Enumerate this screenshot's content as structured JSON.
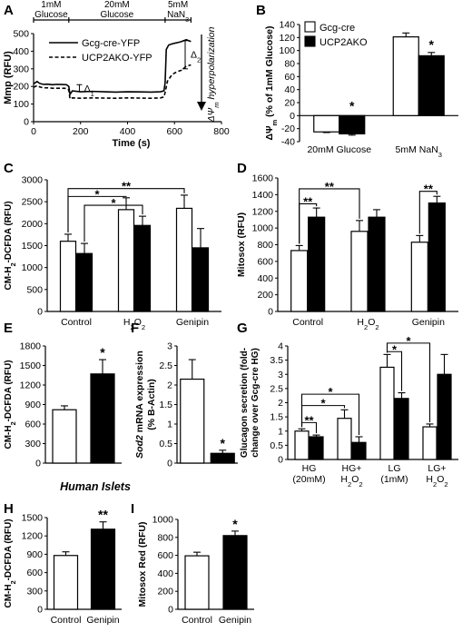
{
  "figure": {
    "section_heading": "Human Islets"
  },
  "chart_data": [
    {
      "panel": "A",
      "type": "line",
      "xlabel": "Time (s)",
      "ylabel": "Mmp (RFU)",
      "xlim": [
        0,
        800
      ],
      "ylim": [
        0,
        500
      ],
      "xticks": [
        "0",
        "200",
        "400",
        "600",
        "800"
      ],
      "yticks": [
        "0",
        "100",
        "200",
        "300",
        "400",
        "500"
      ],
      "conditions": [
        {
          "label": "1mM\nGlucose",
          "x0": 0,
          "x1": 150
        },
        {
          "label": "20mM\nGlucose",
          "x0": 150,
          "x1": 560
        },
        {
          "label": "5mM\nNaN3",
          "x0": 560,
          "x1": 670
        }
      ],
      "annotations": {
        "delta1": "Δ1",
        "delta2": "Δ2",
        "hyper": "ΔΨm hyperpolarization"
      },
      "series": [
        {
          "name": "Gcg-cre-YFP",
          "style": "solid",
          "x": [
            0,
            15,
            25,
            40,
            60,
            80,
            100,
            120,
            140,
            150,
            155,
            165,
            200,
            250,
            300,
            350,
            400,
            450,
            500,
            540,
            555,
            560,
            565,
            575,
            590,
            610,
            630,
            650,
            670
          ],
          "y": [
            215,
            228,
            218,
            212,
            213,
            210,
            212,
            211,
            210,
            200,
            155,
            175,
            170,
            172,
            170,
            168,
            170,
            169,
            168,
            170,
            175,
            220,
            410,
            435,
            442,
            448,
            455,
            465,
            455
          ]
        },
        {
          "name": "UCP2AKO-YFP",
          "style": "dashed",
          "x": [
            0,
            15,
            25,
            40,
            60,
            80,
            100,
            120,
            140,
            150,
            155,
            165,
            200,
            250,
            300,
            350,
            400,
            450,
            500,
            540,
            555,
            560,
            570,
            590,
            610,
            630,
            650,
            670
          ],
          "y": [
            195,
            205,
            198,
            192,
            192,
            190,
            190,
            190,
            189,
            180,
            130,
            135,
            133,
            135,
            134,
            133,
            135,
            134,
            133,
            135,
            140,
            165,
            230,
            268,
            283,
            292,
            315,
            322
          ]
        }
      ]
    },
    {
      "panel": "B",
      "type": "bar",
      "ylabel": "ΔΨm (% of 1mM Glucose)",
      "ylim": [
        -40,
        140
      ],
      "yticks": [
        "-40",
        "-20",
        "0",
        "20",
        "40",
        "60",
        "80",
        "100",
        "120",
        "140"
      ],
      "categories": [
        "20mM Glucose",
        "5mM NaN3"
      ],
      "series": [
        {
          "name": "Gcg-cre",
          "fill": "#ffffff",
          "values": [
            -25,
            121
          ],
          "errors": [
            1,
            6
          ]
        },
        {
          "name": "UCP2AKO",
          "fill": "#000000",
          "values": [
            -28,
            92
          ],
          "errors": [
            2,
            5
          ]
        }
      ],
      "stars": [
        "*",
        "*"
      ]
    },
    {
      "panel": "C",
      "type": "bar",
      "ylabel": "CM-H2-DCFDA (RFU)",
      "ylim": [
        0,
        3000
      ],
      "yticks": [
        "0",
        "500",
        "1000",
        "1500",
        "2000",
        "2500",
        "3000"
      ],
      "categories": [
        "Control",
        "H2O2",
        "Genipin"
      ],
      "series": [
        {
          "name": "Gcg-cre",
          "fill": "#ffffff",
          "values": [
            1600,
            2320,
            2350
          ],
          "errors": [
            160,
            270,
            300
          ]
        },
        {
          "name": "UCP2AKO",
          "fill": "#000000",
          "values": [
            1320,
            1960,
            1450
          ],
          "errors": [
            230,
            210,
            440
          ]
        }
      ],
      "brackets": [
        {
          "label": "*",
          "from": [
            0,
            0
          ],
          "to": [
            1,
            0
          ],
          "y": 2620
        },
        {
          "label": "**",
          "from": [
            0,
            0
          ],
          "to": [
            2,
            0
          ],
          "y": 2800
        },
        {
          "label": "*",
          "from": [
            0,
            1
          ],
          "to": [
            1,
            1
          ],
          "y": 2420
        }
      ]
    },
    {
      "panel": "D",
      "type": "bar",
      "ylabel": "Mitosox (RFU)",
      "ylim": [
        0,
        1600
      ],
      "yticks": [
        "0",
        "200",
        "400",
        "600",
        "800",
        "1000",
        "1200",
        "1400",
        "1600"
      ],
      "categories": [
        "Control",
        "H2O2",
        "Genipin"
      ],
      "series": [
        {
          "name": "Gcg-cre",
          "fill": "#ffffff",
          "values": [
            730,
            960,
            830
          ],
          "errors": [
            60,
            130,
            80
          ]
        },
        {
          "name": "UCP2AKO",
          "fill": "#000000",
          "values": [
            1130,
            1130,
            1300
          ],
          "errors": [
            110,
            90,
            80
          ]
        }
      ],
      "brackets": [
        {
          "label": "**",
          "from": [
            0,
            0
          ],
          "to": [
            0,
            1
          ],
          "y": 1290
        },
        {
          "label": "**",
          "from": [
            0,
            0
          ],
          "to": [
            1,
            0
          ],
          "y": 1470
        },
        {
          "label": "**",
          "from": [
            2,
            0
          ],
          "to": [
            2,
            1
          ],
          "y": 1440
        }
      ]
    },
    {
      "panel": "E",
      "type": "bar",
      "ylabel": "CM-H2-DCFDA (RFU)",
      "ylim": [
        0,
        1800
      ],
      "yticks": [
        "0",
        "300",
        "600",
        "900",
        "1200",
        "1500",
        "1800"
      ],
      "categories": [
        "",
        ""
      ],
      "values": [
        820,
        1370
      ],
      "errors": [
        60,
        220
      ],
      "fills": [
        "#ffffff",
        "#000000"
      ],
      "stars": [
        "",
        "*"
      ]
    },
    {
      "panel": "F",
      "type": "bar",
      "ylabel": "Sod2 mRNA expression (% B-Actin)",
      "ylim": [
        0,
        3
      ],
      "yticks": [
        "0",
        "0.5",
        "1",
        "1.5",
        "2",
        "2.5",
        "3"
      ],
      "categories": [
        "",
        ""
      ],
      "values": [
        2.15,
        0.25
      ],
      "errors": [
        0.5,
        0.08
      ],
      "fills": [
        "#ffffff",
        "#000000"
      ],
      "stars": [
        "",
        "*"
      ]
    },
    {
      "panel": "G",
      "type": "bar",
      "ylabel": "Glucagon secretion (fold-change over Gcg-cre HG)",
      "ylim": [
        0,
        4
      ],
      "yticks": [
        "0",
        "0.5",
        "1",
        "1.5",
        "2",
        "2.5",
        "3",
        "3.5",
        "4"
      ],
      "categories": [
        "HG\n(20mM)",
        "HG+\nH2O2",
        "LG\n(1mM)",
        "LG+\nH2O2"
      ],
      "series": [
        {
          "name": "Gcg-cre",
          "fill": "#ffffff",
          "values": [
            1.0,
            1.45,
            3.25,
            1.15
          ],
          "errors": [
            0.08,
            0.3,
            0.45,
            0.1
          ]
        },
        {
          "name": "UCP2AKO",
          "fill": "#000000",
          "values": [
            0.8,
            0.6,
            2.15,
            3.0
          ],
          "errors": [
            0.06,
            0.2,
            0.2,
            0.7
          ]
        }
      ],
      "brackets": [
        {
          "label": "**",
          "from": [
            0,
            0
          ],
          "to": [
            0,
            1
          ],
          "y": 1.3
        },
        {
          "label": "*",
          "from": [
            0,
            0
          ],
          "to": [
            1,
            0
          ],
          "y": 1.9
        },
        {
          "label": "*",
          "from": [
            0,
            0
          ],
          "to": [
            1,
            1
          ],
          "y": 2.3
        },
        {
          "label": "*",
          "from": [
            2,
            0
          ],
          "to": [
            2,
            1
          ],
          "y": 3.8
        },
        {
          "label": "*",
          "from": [
            2,
            0
          ],
          "to": [
            3,
            0
          ],
          "y": 4.1
        }
      ]
    },
    {
      "panel": "H",
      "type": "bar",
      "ylabel": "CM-H2-DCFDA (RFU)",
      "ylim": [
        0,
        1500
      ],
      "yticks": [
        "0",
        "300",
        "600",
        "900",
        "1200",
        "1500"
      ],
      "categories": [
        "Control",
        "Genipin"
      ],
      "values": [
        880,
        1310
      ],
      "errors": [
        60,
        120
      ],
      "fills": [
        "#ffffff",
        "#000000"
      ],
      "stars": [
        "",
        "**"
      ]
    },
    {
      "panel": "I",
      "type": "bar",
      "ylabel": "Mitosox Red (RFU)",
      "ylim": [
        0,
        1000
      ],
      "yticks": [
        "0",
        "200",
        "400",
        "600",
        "800",
        "1000"
      ],
      "categories": [
        "Control",
        "Genipin"
      ],
      "values": [
        595,
        820
      ],
      "errors": [
        40,
        50
      ],
      "fills": [
        "#ffffff",
        "#000000"
      ],
      "stars": [
        "",
        "*"
      ]
    }
  ]
}
